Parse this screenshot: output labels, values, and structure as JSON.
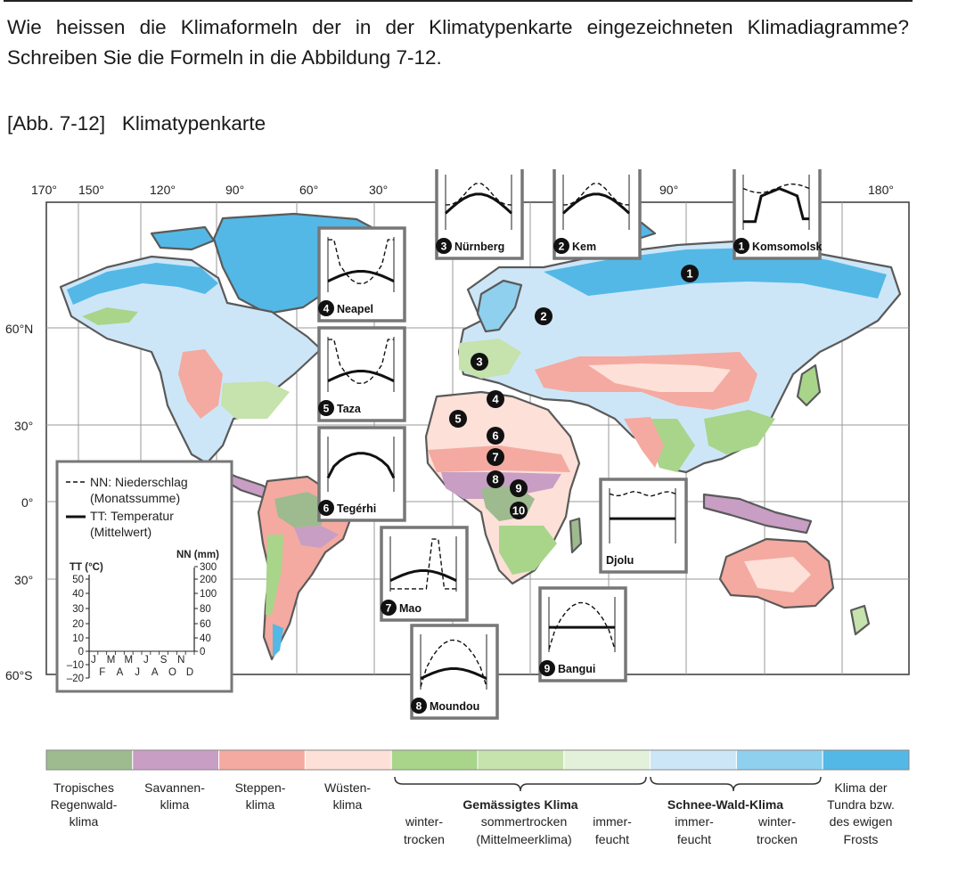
{
  "question": "Wie heissen die Klimaformeln der in der Klimatypenkarte eingezeichneten Klimadiagramme? Schreiben Sie die Formeln in die Abbildung 7-12.",
  "caption": "[Abb. 7-12]   Klimatypenkarte",
  "lon_labels": [
    "170°",
    "150°",
    "120°",
    "90°",
    "60°",
    "30°",
    "90°",
    "180°"
  ],
  "lat_labels": [
    "60°N",
    "30°",
    "0°",
    "30°",
    "60°S"
  ],
  "map_numbers": [
    "1",
    "2",
    "3",
    "4",
    "5",
    "6",
    "7",
    "8",
    "9",
    "10"
  ],
  "diagrams": [
    {
      "num": "1",
      "name": "Komsomolsk"
    },
    {
      "num": "2",
      "name": "Kem"
    },
    {
      "num": "3",
      "name": "Nürnberg"
    },
    {
      "num": "4",
      "name": "Neapel"
    },
    {
      "num": "5",
      "name": "Taza"
    },
    {
      "num": "6",
      "name": "Tegérhi"
    },
    {
      "num": "7",
      "name": "Mao"
    },
    {
      "num": "8",
      "name": "Moundou"
    },
    {
      "num": "9",
      "name": "Bangui"
    },
    {
      "num": "",
      "name": "Djolu"
    }
  ],
  "legend": {
    "nn_label": [
      "NN: Niederschlag",
      "(Monatssumme)"
    ],
    "tt_label": [
      "TT: Temperatur",
      "(Mittelwert)"
    ],
    "nn_unit": "NN (mm)",
    "tt_unit": "TT (°C)",
    "tt_ticks": [
      "50",
      "40",
      "30",
      "20",
      "10",
      "0",
      "–10",
      "–20"
    ],
    "nn_ticks": [
      "300",
      "200",
      "100",
      "80",
      "60",
      "40",
      "20",
      "0"
    ],
    "months_top": [
      "J",
      "M",
      "M",
      "J",
      "S",
      "N"
    ],
    "months_bottom": [
      "F",
      "A",
      "J",
      "A",
      "O",
      "D"
    ]
  },
  "climate_legend": {
    "colors": [
      "#9dbb8f",
      "#c89ec4",
      "#f4aaa0",
      "#fde0d8",
      "#a8d58a",
      "#c6e2ad",
      "#e4f1da",
      "#cde6f7",
      "#8fd0ef",
      "#53b8e6"
    ],
    "labels": [
      [
        "Tropisches",
        "Regenwald-",
        "klima"
      ],
      [
        "Savannen-",
        "klima"
      ],
      [
        "Steppen-",
        "klima"
      ],
      [
        "Wüsten-",
        "klima"
      ]
    ],
    "temperate_title": "Gemässigtes Klima",
    "temperate_sub": [
      [
        "winter-",
        "trocken"
      ],
      [
        "sommertrocken",
        "(Mittelmeerklima)"
      ],
      [
        "immer-",
        "feucht"
      ]
    ],
    "snow_title": "Schnee-Wald-Klima",
    "snow_sub": [
      [
        "immer-",
        "feucht"
      ],
      [
        "winter-",
        "trocken"
      ]
    ],
    "tundra": [
      "Klima der",
      "Tundra bzw.",
      "des ewigen",
      "Frosts"
    ]
  }
}
